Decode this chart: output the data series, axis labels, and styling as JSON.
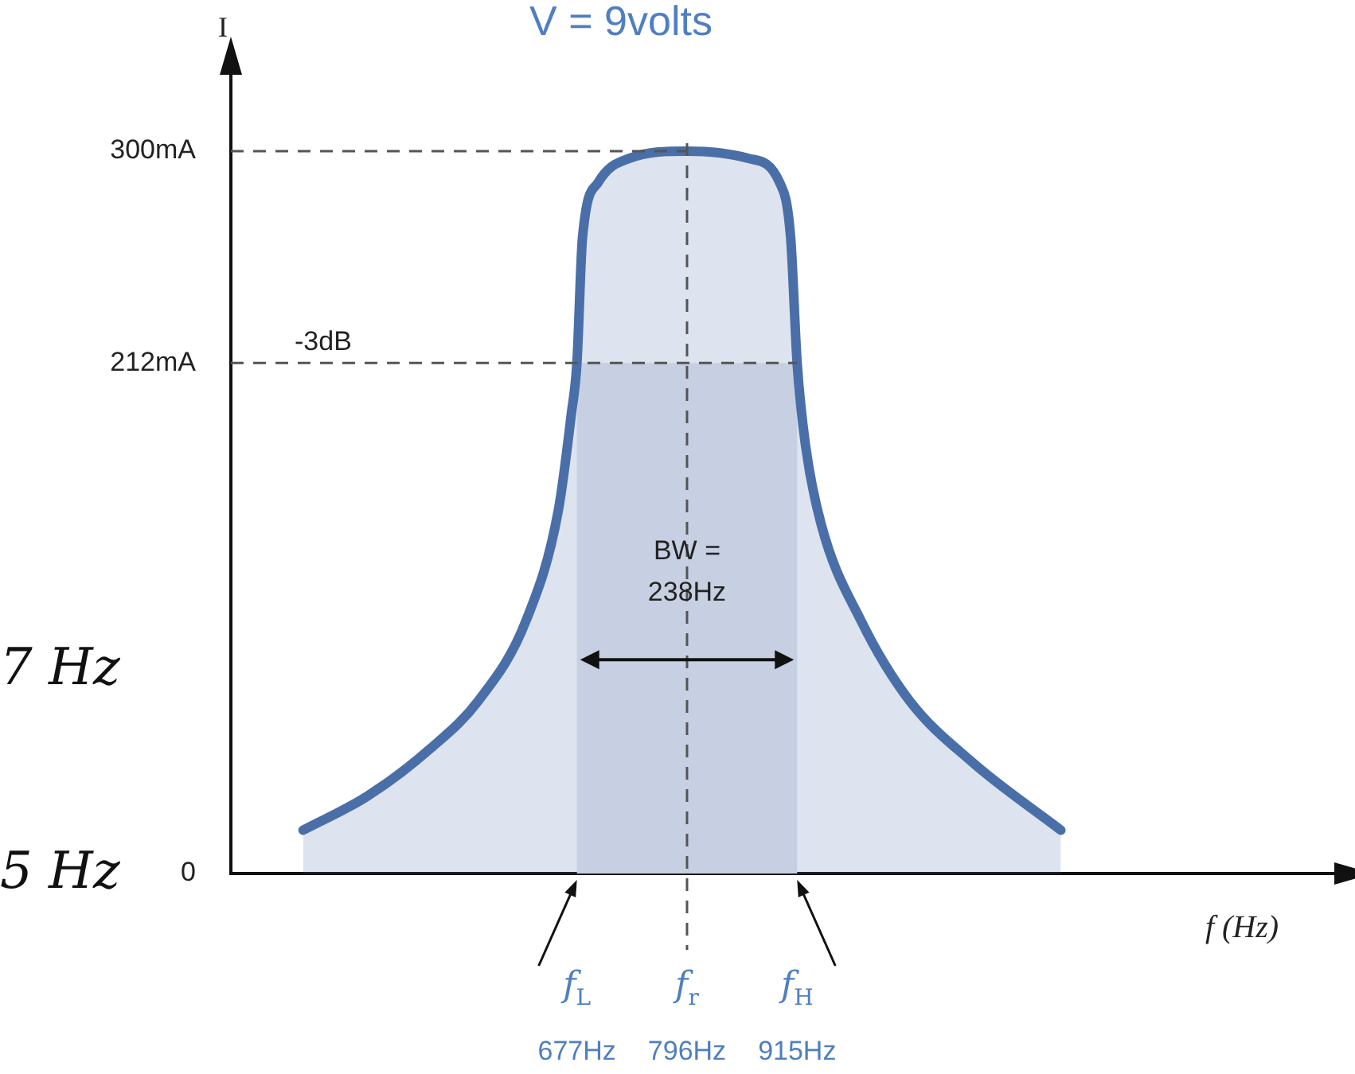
{
  "chart_data": {
    "type": "area",
    "title": "V = 9volts",
    "xlabel": "f (Hz)",
    "ylabel": "I",
    "x": [
      381,
      450,
      519,
      571,
      622,
      657,
      671,
      677,
      683,
      700,
      734,
      796,
      862,
      896,
      908,
      915,
      924,
      941,
      984,
      1036,
      1105,
      1200
    ],
    "series": [
      {
        "color": "#4a6fa8",
        "values": [
          18,
          32,
          52,
          72,
          105,
          151,
          191,
          212,
          264,
          287,
          297,
          300,
          297,
          287,
          264,
          212,
          178,
          145,
          105,
          72,
          46,
          18
        ]
      }
    ],
    "xlim": [
      303,
      1499
    ],
    "ylim": [
      0,
      333
    ],
    "xticks": [
      {
        "value": 677,
        "label": "677Hz"
      },
      {
        "value": 796,
        "label": "796Hz"
      },
      {
        "value": 915,
        "label": "915Hz"
      }
    ],
    "yticks": [
      0,
      {
        "value": 212,
        "label": "212mA"
      },
      {
        "value": 300,
        "label": "300mA"
      }
    ],
    "ref_lines": [
      {
        "axis": "y",
        "value": 300
      },
      {
        "axis": "y",
        "value": 212,
        "label": "-3dB"
      },
      {
        "axis": "x",
        "value": 796
      }
    ],
    "bands": [
      {
        "axis": "x",
        "from": 677,
        "to": 915,
        "color": "#c6d0e2"
      }
    ],
    "annotations": [
      {
        "text": "BW =\n238Hz",
        "x": 796,
        "y": 100
      },
      "f$_{L}$",
      "f$_{r}$",
      "f$_{H}$",
      "7 Hz",
      "5 Hz"
    ],
    "grid": false,
    "legend": false
  }
}
